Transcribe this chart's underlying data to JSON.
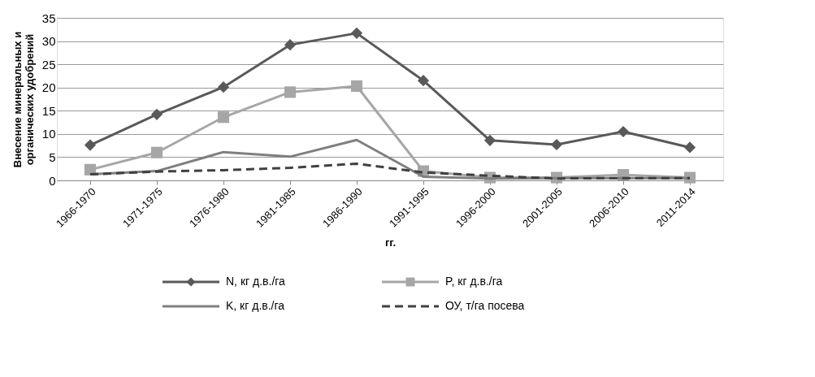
{
  "chart_data": {
    "type": "line",
    "xlabel": "гг.",
    "ylabel": "Внесение минеральных и органических удобрений",
    "categories": [
      "1966-1970",
      "1971-1975",
      "1976-1980",
      "1981-1985",
      "1986-1990",
      "1991-1995",
      "1996-2000",
      "2001-2005",
      "2006-2010",
      "2011-2014"
    ],
    "ylim": [
      0,
      35
    ],
    "yticks": [
      0,
      5,
      10,
      15,
      20,
      25,
      30,
      35
    ],
    "grid": "y",
    "legend": "bottom",
    "series": [
      {
        "name": "N, кг д.в./га",
        "color": "#595959",
        "marker": "diamond",
        "line_style": "solid",
        "values": [
          7.6,
          14.2,
          20.1,
          29.2,
          31.7,
          21.5,
          8.6,
          7.7,
          10.5,
          7.1
        ]
      },
      {
        "name": "P, кг д.в./га",
        "color": "#a6a6a6",
        "marker": "square",
        "line_style": "solid",
        "values": [
          2.3,
          6.0,
          13.6,
          19.0,
          20.3,
          2.0,
          0.6,
          0.6,
          1.2,
          0.6
        ]
      },
      {
        "name": "K, кг д.в./га",
        "color": "#7f7f7f",
        "marker": "none",
        "line_style": "solid",
        "values": [
          1.3,
          2.0,
          6.1,
          5.1,
          8.7,
          0.8,
          0.4,
          0.5,
          0.5,
          0.5
        ]
      },
      {
        "name": "ОУ, т/га посева",
        "color": "#404040",
        "marker": "none",
        "line_style": "dashed",
        "values": [
          1.3,
          1.9,
          2.2,
          2.7,
          3.6,
          1.7,
          1.0,
          0.4,
          0.5,
          0.5
        ]
      }
    ]
  }
}
